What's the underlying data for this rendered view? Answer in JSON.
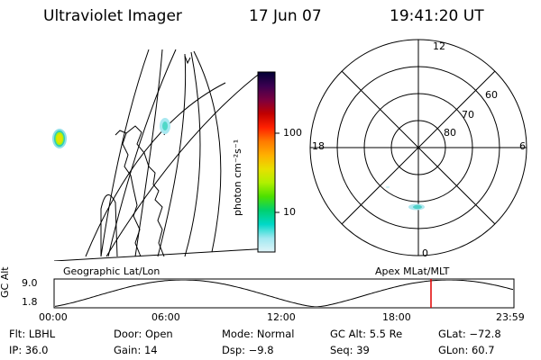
{
  "header": {
    "title": "Ultraviolet Imager",
    "date": "17 Jun 07",
    "time": "19:41:20 UT"
  },
  "colorbar": {
    "unit_label": "photon cm⁻²s⁻¹",
    "ticks": [
      "100",
      "10"
    ],
    "scale": "log",
    "colors": [
      "#000033",
      "#3a0050",
      "#7a0040",
      "#c00000",
      "#ff2000",
      "#ff7a00",
      "#ffb000",
      "#e8e000",
      "#b0f000",
      "#4ce000",
      "#00d070",
      "#00d8c8",
      "#a0e8f0",
      "#e0f4f8"
    ]
  },
  "geographic_panel": {
    "label": "Geographic Lat/Lon"
  },
  "apex_panel": {
    "label": "Apex  MLat/MLT",
    "mlt_labels": {
      "top": "12",
      "left": "18",
      "right": "6",
      "bottom": "0"
    },
    "mlat_labels": [
      "60",
      "70",
      "80"
    ]
  },
  "altitude_strip": {
    "ylabel": "GC Alt",
    "yticks": [
      "9.0",
      "1.8"
    ],
    "xticks": [
      "00:00",
      "06:00",
      "12:00",
      "18:00",
      "23:59"
    ],
    "marker_color": "#e00000",
    "marker_time": "19:41:20"
  },
  "status": {
    "row1": {
      "flt": "Flt: LBHL",
      "door": "Door: Open",
      "mode": "Mode: Normal",
      "gc_alt": "GC Alt: 5.5 Re",
      "glat": "GLat: −72.8"
    },
    "row2": {
      "ip": "IP: 36.0",
      "gain": "Gain: 14",
      "dsp": "Dsp:    −9.8",
      "seq": "Seq: 39",
      "glon": "GLon:  60.7"
    }
  }
}
